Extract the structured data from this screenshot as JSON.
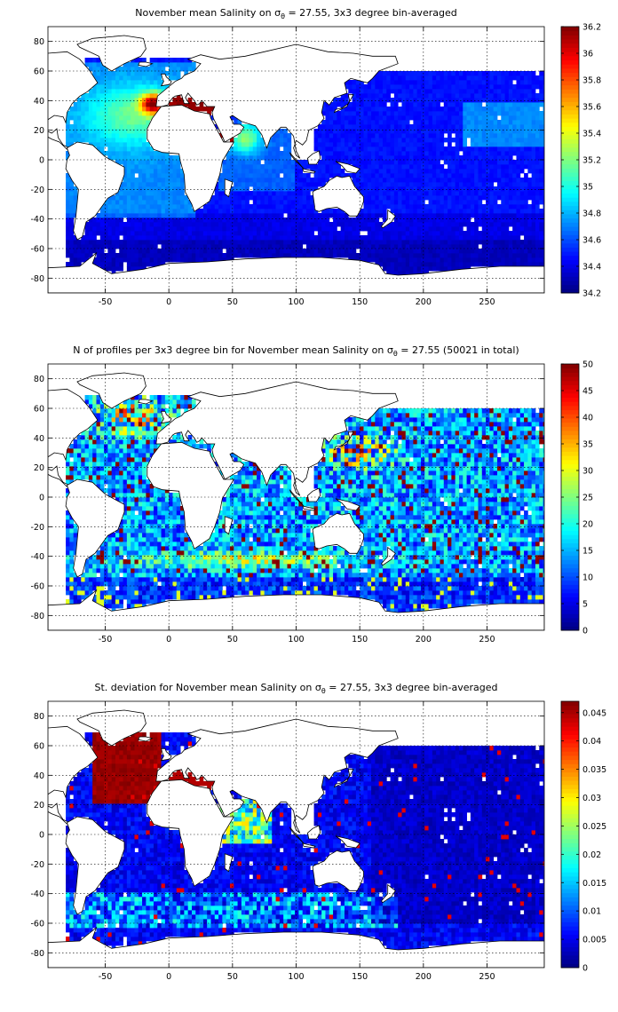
{
  "chart_data": [
    {
      "type": "heatmap",
      "title": "November mean Salinity on σθ = 27.55, 3x3 degree bin-averaged",
      "title_parts": {
        "pre": "November mean Salinity on ",
        "sym": "σ",
        "sub": "θ",
        "post": " = 27.55, 3x3 degree bin-averaged"
      },
      "xlim": [
        -95,
        295
      ],
      "ylim": [
        -90,
        90
      ],
      "xticks": [
        -50,
        0,
        50,
        100,
        150,
        200,
        250
      ],
      "yticks": [
        -80,
        -60,
        -40,
        -20,
        0,
        20,
        40,
        60,
        80
      ],
      "grid": true,
      "colormap": "jet",
      "clim": [
        34.2,
        36.2
      ],
      "colorbar_ticks": [
        "34.2",
        "34.4",
        "34.6",
        "34.8",
        "35",
        "35.2",
        "35.4",
        "35.6",
        "35.8",
        "36",
        "36.2"
      ],
      "variable": "salinity"
    },
    {
      "type": "heatmap",
      "title": "N of profiles per 3x3 degree bin for November mean Salinity on σθ = 27.55 (50021 in total)",
      "title_parts": {
        "pre": "N of profiles per 3x3 degree bin for November mean Salinity on ",
        "sym": "σ",
        "sub": "θ",
        "post": " = 27.55 (50021 in total)"
      },
      "xlim": [
        -95,
        295
      ],
      "ylim": [
        -90,
        90
      ],
      "xticks": [
        -50,
        0,
        50,
        100,
        150,
        200,
        250
      ],
      "yticks": [
        -80,
        -60,
        -40,
        -20,
        0,
        20,
        40,
        60,
        80
      ],
      "grid": true,
      "colormap": "jet",
      "clim": [
        0,
        50
      ],
      "colorbar_ticks": [
        "0",
        "5",
        "10",
        "15",
        "20",
        "25",
        "30",
        "35",
        "40",
        "45",
        "50"
      ],
      "variable": "count"
    },
    {
      "type": "heatmap",
      "title": "St. deviation for November mean Salinity on σθ = 27.55, 3x3 degree bin-averaged",
      "title_parts": {
        "pre": "St. deviation for November mean Salinity on ",
        "sym": "σ",
        "sub": "θ",
        "post": " = 27.55, 3x3 degree bin-averaged"
      },
      "xlim": [
        -95,
        295
      ],
      "ylim": [
        -90,
        90
      ],
      "xticks": [
        -50,
        0,
        50,
        100,
        150,
        200,
        250
      ],
      "yticks": [
        -80,
        -60,
        -40,
        -20,
        0,
        20,
        40,
        60,
        80
      ],
      "grid": true,
      "colormap": "jet",
      "clim": [
        0,
        0.047
      ],
      "colorbar_ticks": [
        "0",
        "0.005",
        "0.01",
        "0.015",
        "0.02",
        "0.025",
        "0.03",
        "0.035",
        "0.04",
        "0.045"
      ],
      "variable": "std"
    }
  ]
}
